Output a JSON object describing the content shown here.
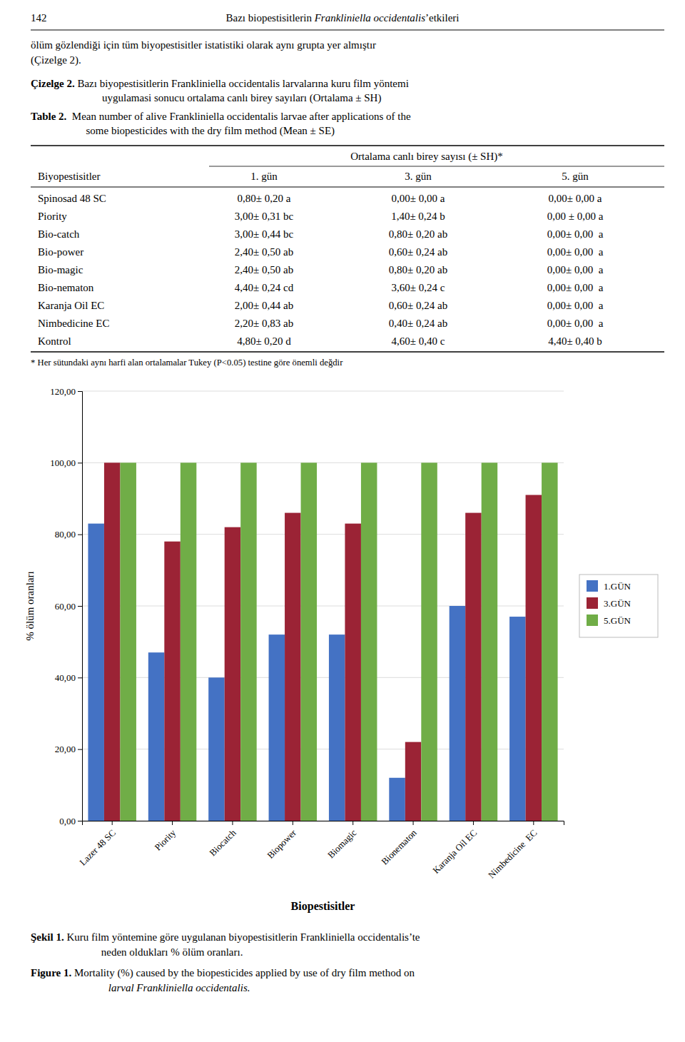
{
  "chart_data": {
    "type": "bar",
    "categories": [
      "Lazer 48 SC",
      "Piority",
      "Biocatch",
      "Biopower",
      "Biomagic",
      "Bionematon",
      "Karanja Oil EC",
      "Nimbedicine  EC"
    ],
    "series": [
      {
        "name": "1.GÜN",
        "color": "#4472C4",
        "values": [
          83,
          47,
          40,
          52,
          52,
          12,
          60,
          57
        ]
      },
      {
        "name": "3.GÜN",
        "color": "#9B2335",
        "values": [
          100,
          78,
          82,
          86,
          83,
          22,
          86,
          91
        ]
      },
      {
        "name": "5.GÜN",
        "color": "#70AD47",
        "values": [
          100,
          100,
          100,
          100,
          100,
          100,
          100,
          100
        ]
      }
    ],
    "x_label": "Biopestisitler",
    "y_label": "% ölüm oranları",
    "ylim": [
      0,
      120
    ],
    "yticks": [
      {
        "value": 0,
        "label": "0,00"
      },
      {
        "value": 20,
        "label": "20,00"
      },
      {
        "value": 40,
        "label": "40,00"
      },
      {
        "value": 60,
        "label": "60,00"
      },
      {
        "value": 80,
        "label": "80,00"
      },
      {
        "value": 100,
        "label": "100,00"
      },
      {
        "value": 120,
        "label": "120,00"
      }
    ],
    "grid": true,
    "legend": "right"
  },
  "page": {
    "page_number": "142",
    "header": [
      "Bazı biopestisitlerin ",
      "Frankliniella occidentalis",
      "’etkileri"
    ],
    "intro": [
      "ölüm gözlendiği için tüm biyopestisitler istatistiki olarak aynı grupta yer almıştır",
      "(Çizelge 2)."
    ],
    "table_caption": {
      "tr": [
        "Çizelge 2.",
        " Bazı biyopestisitlerin Frankliniella occidentalis larvalarına kuru film yöntemi",
        "uygulamasi sonucu ortalama canlı birey sayıları (Ortalama ± SH)"
      ],
      "en": [
        "Table 2.",
        "  Mean number of alive Frankliniella occidentalis larvae after applications of the",
        "  some biopesticides with the dry film method (Mean ± SE)"
      ]
    },
    "table": {
      "span_header": "Ortalama canlı birey sayısı (± SH)*",
      "columns": [
        "Biyopestisitler",
        "1. gün",
        "3. gün",
        "5. gün"
      ],
      "rows": [
        [
          "Spinosad 48 SC",
          "0,80± 0,20 a",
          "0,00± 0,00 a",
          "0,00± 0,00 a"
        ],
        [
          "Piority",
          "3,00± 0,31 bc",
          "1,40± 0,24 b",
          "0,00 ± 0,00 a"
        ],
        [
          "Bio-catch",
          "3,00± 0,44 bc",
          "0,80± 0,20 ab",
          "0,00± 0,00  a"
        ],
        [
          "Bio-power",
          "2,40± 0,50 ab",
          "0,60± 0,24 ab",
          "0,00± 0,00  a"
        ],
        [
          "Bio-magic",
          "2,40± 0,50 ab",
          "0,80± 0,20 ab",
          "0,00± 0,00  a"
        ],
        [
          "Bio-nematon",
          "4,40± 0,24 cd",
          "3,60± 0,24 c",
          "0,00± 0,00  a"
        ],
        [
          "Karanja Oil EC",
          "2,00± 0,44 ab",
          "0,60± 0,24 ab",
          "0,00± 0,00  a"
        ],
        [
          "Nimbedicine EC",
          "2,20± 0,83 ab",
          "0,40± 0,24 ab",
          "0,00± 0,00  a"
        ],
        [
          "Kontrol",
          "4,80± 0,20 d",
          "4,60± 0,40 c",
          "4,40± 0,40 b"
        ]
      ]
    },
    "footnote": "* Her sütundaki aynı harfi alan ortalamalar Tukey (P<0.05) testine göre önemli değdir",
    "figure_caption": {
      "tr": [
        "Şekil 1.",
        " Kuru film yöntemine göre uygulanan biyopestisitlerin Frankliniella occidentalis’te",
        " neden oldukları % ölüm oranları."
      ],
      "en": [
        "Figure 1.",
        " Mortality (%) caused by the biopesticides applied by use of dry film method on",
        " larval Frankliniella occidentalis."
      ]
    }
  }
}
